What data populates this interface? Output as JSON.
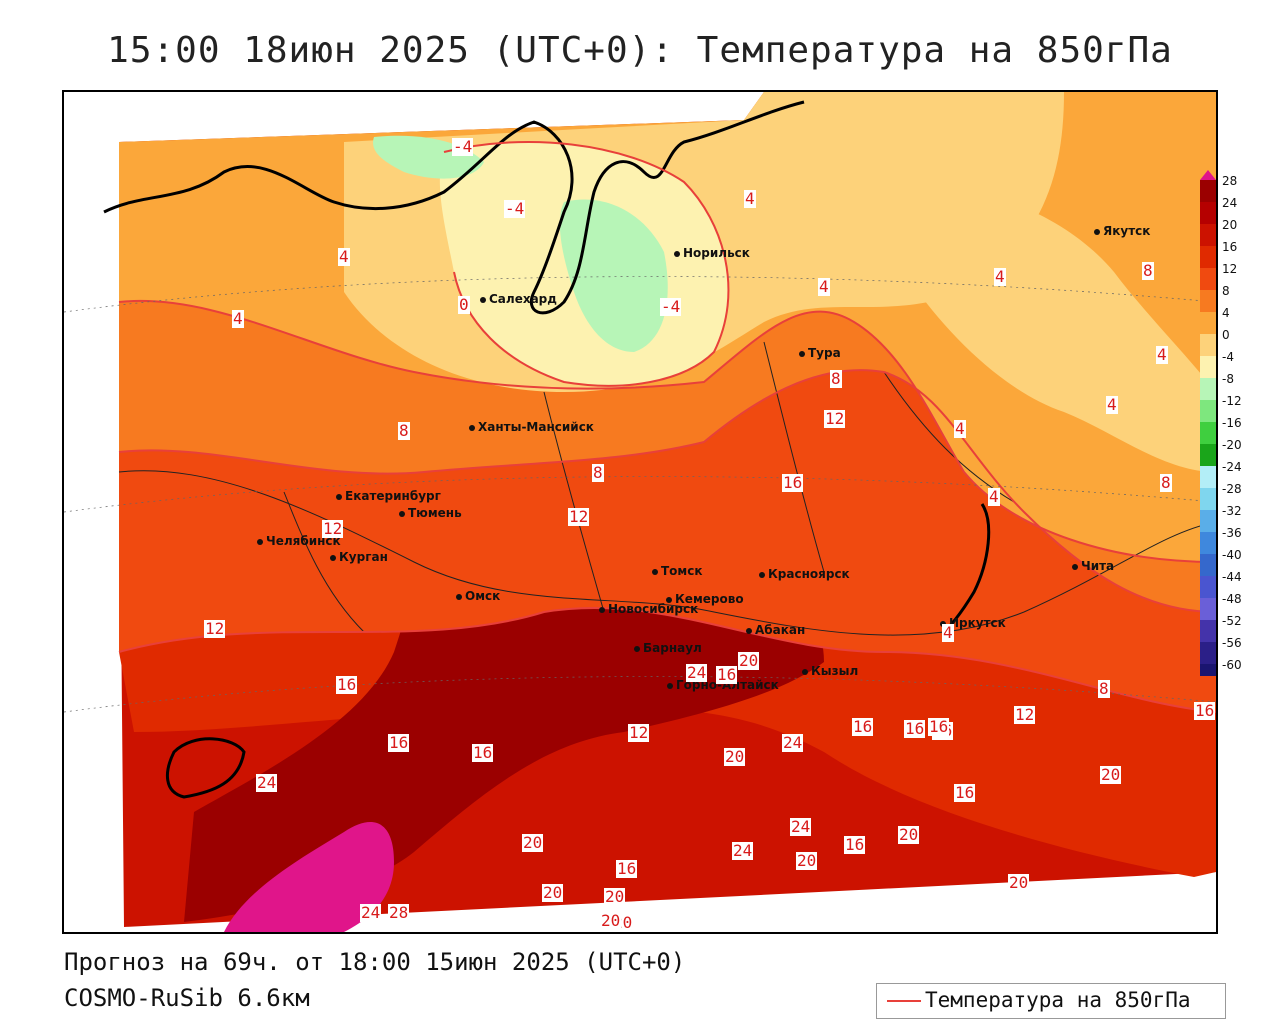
{
  "title": "15:00 18июн 2025 (UTC+0): Температура на 850гПа",
  "footer": {
    "forecast": "Прогноз на 69ч. от 18:00 15июн 2025 (UTC+0)",
    "model": "COSMO-RuSib 6.6км"
  },
  "legend": {
    "label": "Температура на 850гПа",
    "line_color": "#e8403a"
  },
  "colorbar": {
    "labels": [
      "28",
      "24",
      "20",
      "16",
      "12",
      "8",
      "4",
      "0",
      "-4",
      "-8",
      "-12",
      "-16",
      "-20",
      "-24",
      "-28",
      "-32",
      "-36",
      "-40",
      "-44",
      "-48",
      "-52",
      "-56",
      "-60"
    ],
    "colors": [
      "#9b0000",
      "#b50000",
      "#cc1200",
      "#e02a00",
      "#f04a10",
      "#f77a20",
      "#fba73a",
      "#fdd27a",
      "#fdf2b0",
      "#b7f5b7",
      "#7ee77e",
      "#3fcf3f",
      "#1aa51a",
      "#b3eef7",
      "#7fd6ee",
      "#5aaee8",
      "#3f88dd",
      "#3568cc",
      "#4a55d0",
      "#6a5fd8",
      "#4433aa",
      "#2b1f88",
      "#1a1570"
    ],
    "top_color": "#e0158a",
    "bottom_color": "#d02ac8"
  },
  "cities": [
    {
      "name": "Якутск"
    },
    {
      "name": "Норильск"
    },
    {
      "name": "Салехард"
    },
    {
      "name": "Тура"
    },
    {
      "name": "Ханты-Мансийск"
    },
    {
      "name": "Екатеринбург"
    },
    {
      "name": "Тюмень"
    },
    {
      "name": "Челябинск"
    },
    {
      "name": "Курган"
    },
    {
      "name": "Омск"
    },
    {
      "name": "Новосибирск"
    },
    {
      "name": "Томск"
    },
    {
      "name": "Кемерово"
    },
    {
      "name": "Красноярск"
    },
    {
      "name": "Барнаул"
    },
    {
      "name": "Абакан"
    },
    {
      "name": "Горно-Алтайск"
    },
    {
      "name": "Кызыл"
    },
    {
      "name": "Иркутск"
    },
    {
      "name": "Чита"
    }
  ],
  "contour_labels": [
    "-4",
    "-4",
    "4",
    "4",
    "4",
    "0",
    "-4",
    "8",
    "4",
    "4",
    "4",
    "8",
    "12",
    "8",
    "16",
    "12",
    "12",
    "8",
    "4",
    "4",
    "4",
    "8",
    "4",
    "8",
    "12",
    "16",
    "12",
    "16",
    "16",
    "16",
    "12",
    "16",
    "24",
    "20",
    "20",
    "20",
    "20",
    "16",
    "24",
    "16",
    "16",
    "16",
    "16",
    "20",
    "24",
    "24",
    "16",
    "20",
    "20",
    "16",
    "20",
    "20",
    "24",
    "24",
    "28",
    "20",
    "20"
  ]
}
